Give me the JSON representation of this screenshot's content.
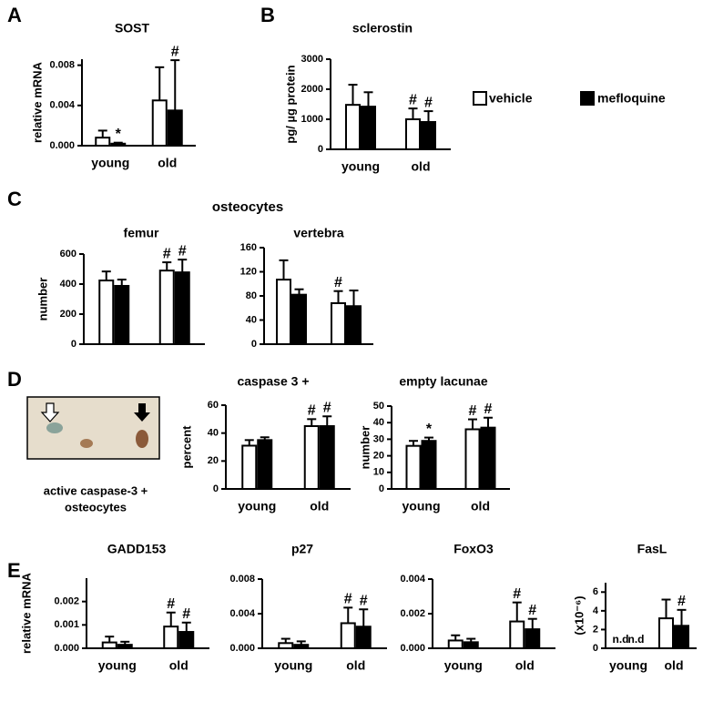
{
  "panel_labels": [
    "A",
    "B",
    "C",
    "D",
    "E"
  ],
  "legend": {
    "names": [
      "vehicle",
      "mefloquine"
    ],
    "colors": [
      "#ffffff",
      "#000000"
    ]
  },
  "group_title": "osteocytes",
  "image_caption": [
    "active caspase-3 +",
    "osteocytes"
  ],
  "chart_data": [
    {
      "type": "bar",
      "title": "SOST",
      "ylabel": "relative mRNA",
      "categories": [
        "young",
        "old"
      ],
      "ylim": [
        0,
        0.0086
      ],
      "yticks": [
        {
          "value": 0,
          "label": "0.000"
        },
        0.004,
        0.008
      ],
      "series": [
        {
          "values": [
            0.0008,
            0.0045
          ],
          "errors": [
            0.0007,
            0.0033
          ],
          "annotations": [
            null,
            null
          ]
        },
        {
          "values": [
            0.0002,
            0.0035
          ],
          "errors": [
            0.0001,
            0.005
          ],
          "annotations": [
            "*",
            "#"
          ]
        }
      ]
    },
    {
      "type": "bar",
      "title": "sclerostin",
      "ylabel": "pg/ µg protein",
      "categories": [
        "young",
        "old"
      ],
      "ylim": [
        0,
        3000
      ],
      "yticks": [
        0,
        1000,
        2000,
        3000
      ],
      "series": [
        {
          "values": [
            1480,
            1000
          ],
          "errors": [
            670,
            360
          ],
          "annotations": [
            null,
            "#"
          ]
        },
        {
          "values": [
            1420,
            910
          ],
          "errors": [
            480,
            360
          ],
          "annotations": [
            null,
            "#"
          ]
        }
      ]
    },
    {
      "type": "bar",
      "title": "femur",
      "ylabel": "number",
      "categories": [
        null,
        null
      ],
      "ylim": [
        0,
        600
      ],
      "yticks": [
        0,
        200,
        400,
        600
      ],
      "series": [
        {
          "values": [
            424,
            490
          ],
          "errors": [
            60,
            55
          ],
          "annotations": [
            null,
            "#"
          ]
        },
        {
          "values": [
            388,
            478
          ],
          "errors": [
            42,
            85
          ],
          "annotations": [
            null,
            "#"
          ]
        }
      ]
    },
    {
      "type": "bar",
      "title": "vertebra",
      "categories": [
        null,
        null
      ],
      "ylim": [
        0,
        160
      ],
      "yticks": [
        0,
        40,
        80,
        120,
        160
      ],
      "series": [
        {
          "values": [
            107,
            68
          ],
          "errors": [
            32,
            20
          ],
          "annotations": [
            null,
            "#"
          ]
        },
        {
          "values": [
            82,
            63
          ],
          "errors": [
            9,
            26
          ],
          "annotations": [
            null,
            null
          ]
        }
      ]
    },
    {
      "type": "bar",
      "title": "caspase 3 +",
      "ylabel": "percent",
      "categories": [
        "young",
        "old"
      ],
      "ylim": [
        0,
        60
      ],
      "yticks": [
        0,
        20,
        40,
        60
      ],
      "series": [
        {
          "values": [
            31,
            45
          ],
          "errors": [
            4,
            5
          ],
          "annotations": [
            null,
            "#"
          ]
        },
        {
          "values": [
            35,
            45
          ],
          "errors": [
            2,
            7
          ],
          "annotations": [
            null,
            "#"
          ]
        }
      ]
    },
    {
      "type": "bar",
      "title": "empty lacunae",
      "ylabel": "number",
      "categories": [
        "young",
        "old"
      ],
      "ylim": [
        0,
        50
      ],
      "yticks": [
        0,
        10,
        20,
        30,
        40,
        50
      ],
      "series": [
        {
          "values": [
            26,
            36
          ],
          "errors": [
            3,
            6
          ],
          "annotations": [
            null,
            "#"
          ]
        },
        {
          "values": [
            29,
            37
          ],
          "errors": [
            2,
            6
          ],
          "annotations": [
            "*",
            "#"
          ]
        }
      ]
    },
    {
      "type": "bar",
      "title": "GADD153",
      "ylabel": "relative mRNA",
      "categories": [
        "young",
        "old"
      ],
      "ylim": [
        0,
        0.003
      ],
      "yticks": [
        {
          "value": 0,
          "label": "0.000"
        },
        0.001,
        0.002
      ],
      "series": [
        {
          "values": [
            0.00025,
            0.00093
          ],
          "errors": [
            0.00025,
            0.0006
          ],
          "annotations": [
            null,
            "#"
          ]
        },
        {
          "values": [
            0.00015,
            0.0007
          ],
          "errors": [
            0.00013,
            0.0004
          ],
          "annotations": [
            null,
            "#"
          ]
        }
      ]
    },
    {
      "type": "bar",
      "title": "p27",
      "categories": [
        "young",
        "old"
      ],
      "ylim": [
        0,
        0.008
      ],
      "yticks": [
        {
          "value": 0,
          "label": "0.000"
        },
        0.004,
        0.008
      ],
      "series": [
        {
          "values": [
            0.0006,
            0.0029
          ],
          "errors": [
            0.0005,
            0.0018
          ],
          "annotations": [
            null,
            "#"
          ]
        },
        {
          "values": [
            0.0004,
            0.0025
          ],
          "errors": [
            0.0004,
            0.002
          ],
          "annotations": [
            null,
            "#"
          ]
        }
      ]
    },
    {
      "type": "bar",
      "title": "FoxO3",
      "categories": [
        "young",
        "old"
      ],
      "ylim": [
        0,
        0.004
      ],
      "yticks": [
        {
          "value": 0,
          "label": "0.000"
        },
        0.002,
        0.004
      ],
      "series": [
        {
          "values": [
            0.00045,
            0.00155
          ],
          "errors": [
            0.0003,
            0.0011
          ],
          "annotations": [
            null,
            "#"
          ]
        },
        {
          "values": [
            0.00035,
            0.0011
          ],
          "errors": [
            0.0002,
            0.0006
          ],
          "annotations": [
            null,
            "#"
          ]
        }
      ]
    },
    {
      "type": "bar",
      "title": "FasL",
      "ylabel": "(x10⁻⁶)",
      "categories": [
        "young",
        "old"
      ],
      "ylim": [
        0,
        7
      ],
      "yticks": [
        0,
        2,
        4,
        6
      ],
      "series": [
        {
          "values": [
            null,
            3.2
          ],
          "value_labels": [
            "n.d",
            null
          ],
          "errors": [
            null,
            2.0
          ],
          "annotations": [
            null,
            null
          ]
        },
        {
          "values": [
            null,
            2.4
          ],
          "value_labels": [
            "n.d",
            null
          ],
          "errors": [
            null,
            1.7
          ],
          "annotations": [
            null,
            "#"
          ]
        }
      ]
    }
  ]
}
